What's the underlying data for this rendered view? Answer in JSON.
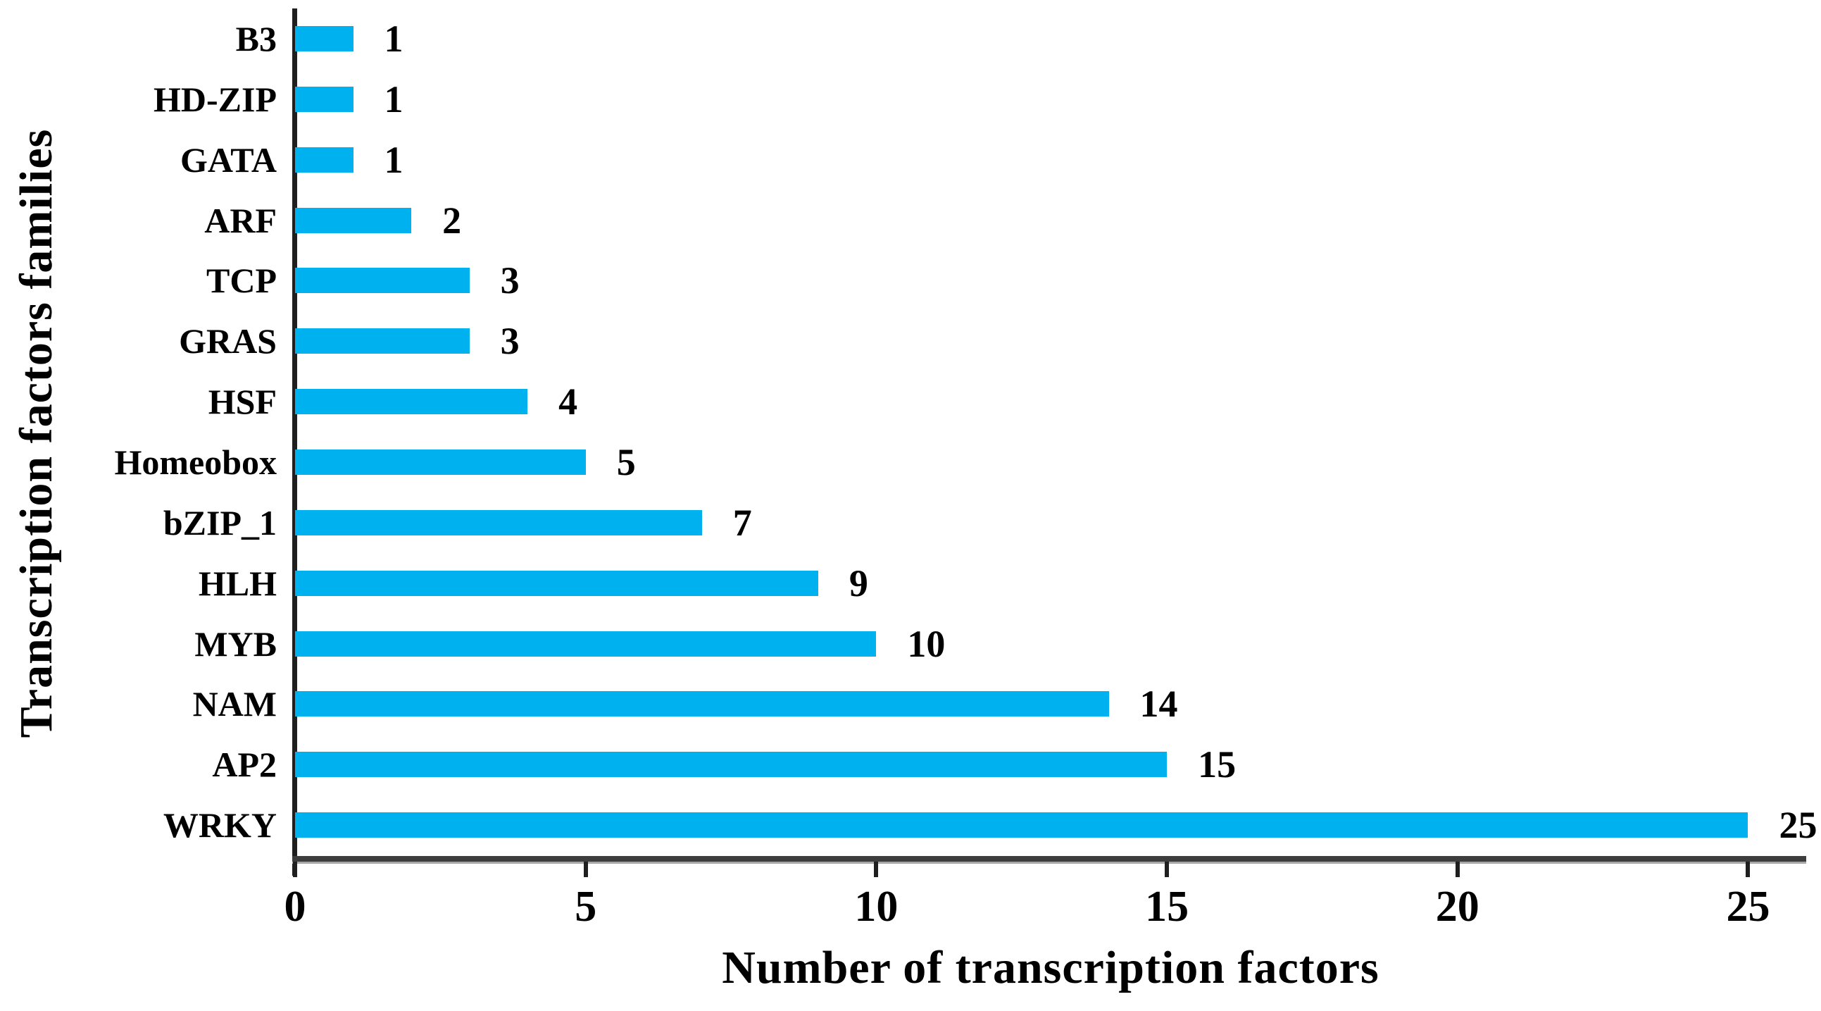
{
  "chart_data": {
    "type": "bar",
    "orientation": "horizontal",
    "xlabel": "Number of transcription factors",
    "ylabel": "Transcription factors families",
    "categories": [
      "B3",
      "HD-ZIP",
      "GATA",
      "ARF",
      "TCP",
      "GRAS",
      "HSF",
      "Homeobox",
      "bZIP_1",
      "HLH",
      "MYB",
      "NAM",
      "AP2",
      "WRKY"
    ],
    "values": [
      1,
      1,
      1,
      2,
      3,
      3,
      4,
      5,
      7,
      9,
      10,
      14,
      15,
      25
    ],
    "x_ticks": [
      0,
      5,
      10,
      15,
      20,
      25
    ],
    "xlim": [
      0,
      26
    ],
    "bar_color": "#00b1f0",
    "axis_color": "#1f1f1f",
    "text_color": "#000000",
    "grid": "off",
    "legend": "none"
  }
}
